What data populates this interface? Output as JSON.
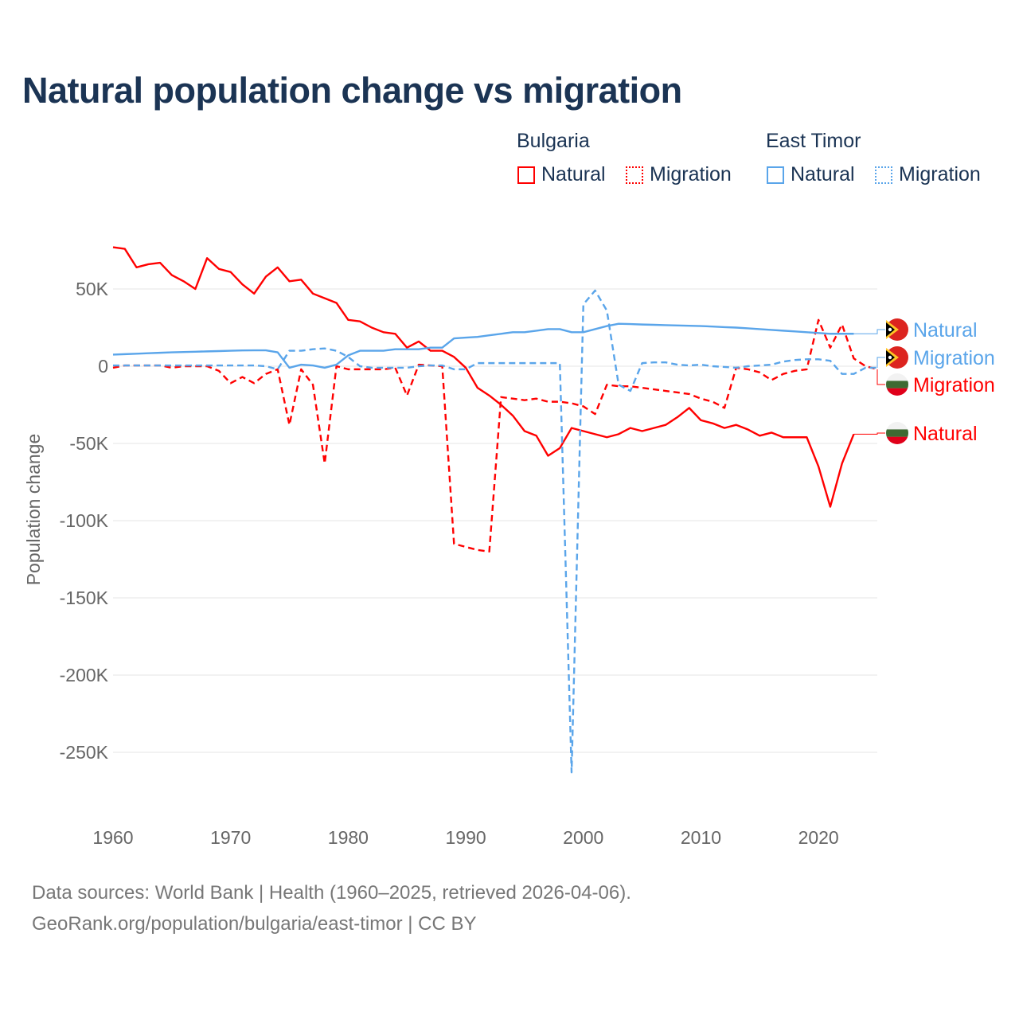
{
  "chart_data": {
    "type": "line",
    "title": "Natural population change vs migration",
    "xlabel": "",
    "ylabel": "Population change",
    "xlim": [
      1960,
      2025
    ],
    "ylim": [
      -270000,
      80000
    ],
    "grid": true,
    "x_ticks": [
      1960,
      1970,
      1980,
      1990,
      2000,
      2010,
      2020
    ],
    "y_ticks": [
      50000,
      0,
      -50000,
      -100000,
      -150000,
      -200000,
      -250000
    ],
    "y_tick_labels": [
      "50K",
      "0",
      "-50K",
      "-100K",
      "-150K",
      "-200K",
      "-250K"
    ],
    "legend": {
      "placement": "top-right",
      "groups": [
        {
          "name": "Bulgaria",
          "items": [
            "Natural",
            "Migration"
          ]
        },
        {
          "name": "East Timor",
          "items": [
            "Natural",
            "Migration"
          ]
        }
      ]
    },
    "series": [
      {
        "name": "Natural",
        "country": "Bulgaria",
        "color": "#ff0000",
        "dash": false,
        "start": 1960,
        "values": [
          77,
          76,
          64,
          66,
          67,
          59,
          55,
          50,
          70,
          63,
          61,
          53,
          47,
          58,
          64,
          55,
          56,
          47,
          44,
          41,
          30,
          29,
          25,
          22,
          21,
          12,
          16,
          10,
          10,
          6,
          -1,
          -14,
          -19,
          -25,
          -32,
          -42,
          -45,
          -58,
          -53,
          -40,
          -42,
          -44,
          -46,
          -44,
          -40,
          -42,
          -40,
          -38,
          -33,
          -27,
          -35,
          -37,
          -40,
          -38,
          -41,
          -45,
          -43,
          -46,
          -46,
          -46,
          -65,
          -91,
          -63,
          -44
        ]
      },
      {
        "name": "Migration",
        "country": "Bulgaria",
        "color": "#ff0000",
        "dash": true,
        "start": 1960,
        "values": [
          -1,
          0.5,
          0.5,
          0.5,
          0.5,
          -1,
          0,
          0,
          0,
          -3,
          -11,
          -7,
          -11,
          -5,
          -2,
          -38,
          -2,
          -12,
          -63,
          0,
          -2,
          -2,
          -2,
          -2,
          -1,
          -19,
          1,
          0.5,
          0,
          -115,
          -117,
          -119,
          -120,
          -20,
          -21,
          -22,
          -21,
          -23,
          -23,
          -24,
          -26,
          -31,
          -12,
          -13,
          -13,
          -14,
          -15,
          -16,
          -17,
          -18,
          -21,
          -23,
          -27,
          -1,
          -2,
          -4,
          -9,
          -5,
          -3,
          -2,
          30,
          12,
          27,
          5,
          0,
          -2
        ]
      },
      {
        "name": "Natural",
        "country": "East Timor",
        "color": "#5aa5ea",
        "dash": false,
        "start": 1960,
        "values": [
          7.5,
          7.8,
          8.1,
          8.4,
          8.7,
          9,
          9.2,
          9.4,
          9.6,
          9.8,
          10,
          10.2,
          10.3,
          10.3,
          9,
          -1,
          1,
          0.5,
          -1,
          1,
          7,
          10,
          10,
          10,
          11,
          11,
          11,
          12,
          12,
          18,
          18.5,
          19,
          20,
          21,
          22,
          22,
          23,
          24,
          24,
          22,
          22,
          24,
          26,
          27.5,
          27.3,
          27,
          26.8,
          26.6,
          26.4,
          26.2,
          26,
          25.7,
          25.3,
          25,
          24.5,
          24,
          23.5,
          23,
          22.5,
          22,
          21.5,
          21,
          21,
          21
        ]
      },
      {
        "name": "Migration",
        "country": "East Timor",
        "color": "#5aa5ea",
        "dash": true,
        "start": 1960,
        "values": [
          0.5,
          0.5,
          0.5,
          0.5,
          0.5,
          0.5,
          0.5,
          0.5,
          0.5,
          0.5,
          0.5,
          0.5,
          0.5,
          0,
          -2,
          10,
          10,
          11,
          11.5,
          10,
          6,
          0,
          -1,
          -1,
          -1,
          -1,
          0,
          0.5,
          0.5,
          -2,
          -2,
          2,
          2,
          2,
          2,
          2,
          2,
          2,
          2,
          -263,
          40,
          49,
          36,
          -12,
          -16,
          2,
          2.5,
          2.5,
          1,
          0.5,
          1,
          0,
          -0.5,
          -1,
          0,
          0.5,
          1,
          3,
          4,
          4.5,
          4.5,
          3.5,
          -5,
          -5,
          -1,
          -1
        ]
      }
    ],
    "end_labels": [
      {
        "text": "Natural",
        "country": "East Timor",
        "color": "#5aa5ea"
      },
      {
        "text": "Migration",
        "country": "East Timor",
        "color": "#5aa5ea"
      },
      {
        "text": "Migration",
        "country": "Bulgaria",
        "color": "#ff0000"
      },
      {
        "text": "Natural",
        "country": "Bulgaria",
        "color": "#ff0000"
      }
    ]
  },
  "footer": {
    "line1": "Data sources: World Bank | Health (1960–2025, retrieved 2026-04-06).",
    "line2": "GeoRank.org/population/bulgaria/east-timor | CC BY"
  }
}
